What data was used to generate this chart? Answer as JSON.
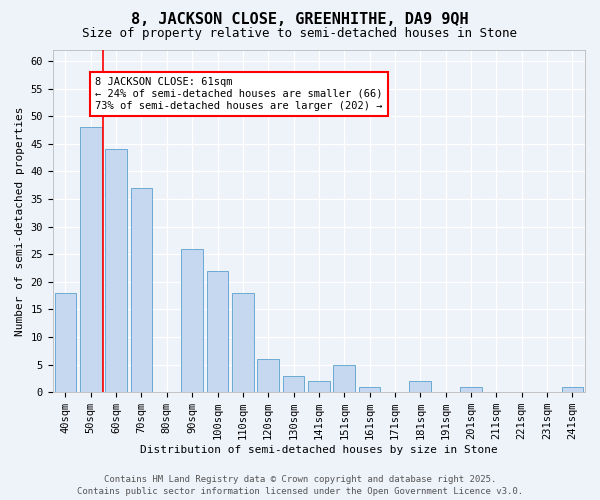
{
  "title": "8, JACKSON CLOSE, GREENHITHE, DA9 9QH",
  "subtitle": "Size of property relative to semi-detached houses in Stone",
  "xlabel": "Distribution of semi-detached houses by size in Stone",
  "ylabel": "Number of semi-detached properties",
  "categories": [
    "40sqm",
    "50sqm",
    "60sqm",
    "70sqm",
    "80sqm",
    "90sqm",
    "100sqm",
    "110sqm",
    "120sqm",
    "130sqm",
    "141sqm",
    "151sqm",
    "161sqm",
    "171sqm",
    "181sqm",
    "191sqm",
    "201sqm",
    "211sqm",
    "221sqm",
    "231sqm",
    "241sqm"
  ],
  "values": [
    18,
    48,
    44,
    37,
    0,
    26,
    22,
    18,
    6,
    3,
    2,
    5,
    1,
    0,
    2,
    0,
    1,
    0,
    0,
    0,
    1
  ],
  "bar_color": "#c5d8f0",
  "bar_edge_color": "#6aaad4",
  "property_line_x": 1.5,
  "property_sqm": 61,
  "pct_smaller": 24,
  "n_smaller": 66,
  "pct_larger": 73,
  "n_larger": 202,
  "annotation_text": "8 JACKSON CLOSE: 61sqm\n← 24% of semi-detached houses are smaller (66)\n73% of semi-detached houses are larger (202) →",
  "ylim": [
    0,
    62
  ],
  "yticks": [
    0,
    5,
    10,
    15,
    20,
    25,
    30,
    35,
    40,
    45,
    50,
    55,
    60
  ],
  "footer1": "Contains HM Land Registry data © Crown copyright and database right 2025.",
  "footer2": "Contains public sector information licensed under the Open Government Licence v3.0.",
  "background_color": "#eef2f9",
  "grid_color": "#ffffff",
  "title_fontsize": 11,
  "subtitle_fontsize": 9,
  "axis_label_fontsize": 8,
  "tick_fontsize": 7.5,
  "annotation_fontsize": 7.5,
  "footer_fontsize": 6.5
}
